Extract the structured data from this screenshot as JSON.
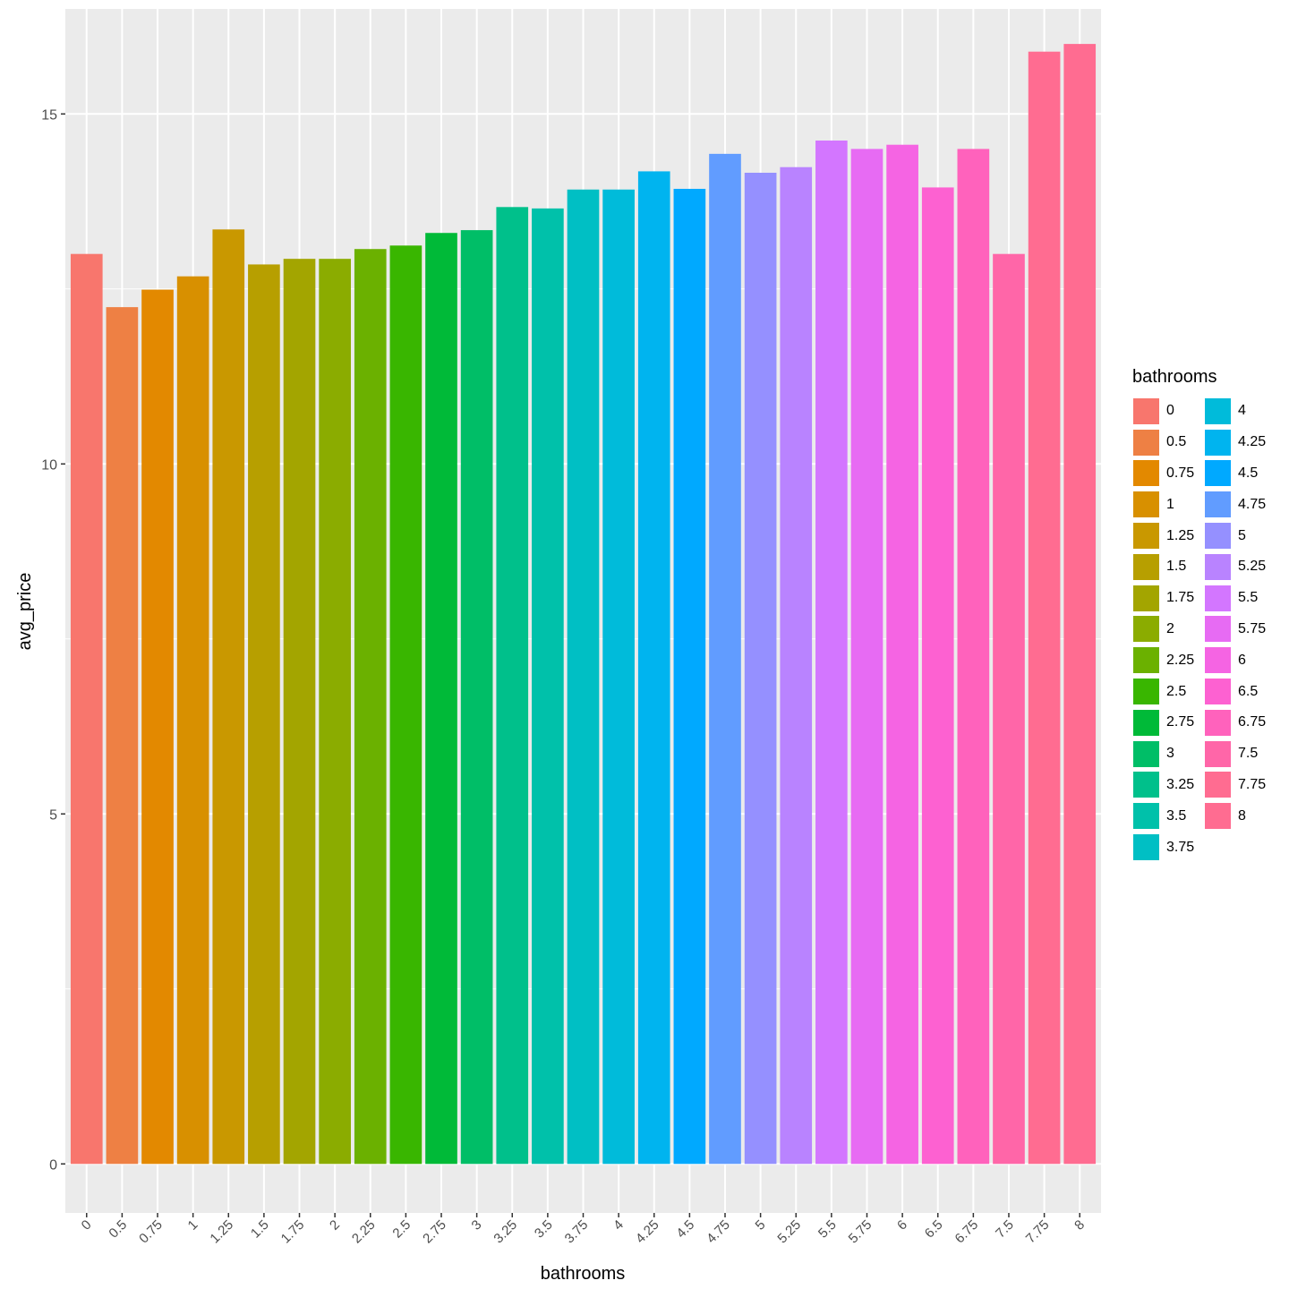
{
  "chart_data": {
    "type": "bar",
    "xlabel": "bathrooms",
    "ylabel": "avg_price",
    "ylim": [
      -0.7,
      16.5
    ],
    "yticks": [
      0,
      5,
      10,
      15
    ],
    "grid": true,
    "legend_position": "right",
    "legend_title": "bathrooms",
    "categories": [
      "0",
      "0.5",
      "0.75",
      "1",
      "1.25",
      "1.5",
      "1.75",
      "2",
      "2.25",
      "2.5",
      "2.75",
      "3",
      "3.25",
      "3.5",
      "3.75",
      "4",
      "4.25",
      "4.5",
      "4.75",
      "5",
      "5.25",
      "5.5",
      "5.75",
      "6",
      "6.5",
      "6.75",
      "7.5",
      "7.75",
      "8"
    ],
    "values": [
      13.0,
      12.24,
      12.49,
      12.68,
      13.35,
      12.85,
      12.93,
      12.93,
      13.07,
      13.12,
      13.3,
      13.34,
      13.67,
      13.65,
      13.92,
      13.92,
      14.18,
      13.93,
      14.43,
      14.16,
      14.24,
      14.62,
      14.5,
      14.56,
      13.95,
      14.5,
      13.0,
      15.89,
      16.0
    ],
    "colors": [
      "#F8766D",
      "#EE8044",
      "#E38900",
      "#D89000",
      "#C99800",
      "#B79F00",
      "#A3A500",
      "#8BAC00",
      "#6BB100",
      "#39B600",
      "#00BA38",
      "#00BE67",
      "#00C08B",
      "#00C1AA",
      "#00BFC4",
      "#00BBDA",
      "#00B4EF",
      "#00A9FF",
      "#619CFF",
      "#9590FF",
      "#B983FF",
      "#D376FF",
      "#E76BF3",
      "#F564E3",
      "#FD61D1",
      "#FF62BC",
      "#FF66A8",
      "#FF6C91",
      "#FF6C91"
    ]
  }
}
